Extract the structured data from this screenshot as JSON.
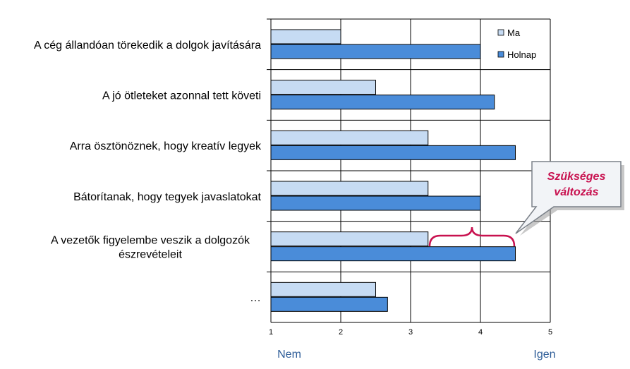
{
  "chart_data": {
    "type": "bar",
    "orientation": "horizontal",
    "categories": [
      [
        "A cég állandóan törekedik a dolgok javítására"
      ],
      [
        "A jó ötleteket azonnal tett követi"
      ],
      [
        "Arra ösztönöznek, hogy kreatív legyek"
      ],
      [
        "Bátorítanak, hogy tegyek javaslatokat"
      ],
      [
        "A vezetők figyelembe veszik a dolgozók",
        "észrevételeit"
      ],
      [
        "…"
      ]
    ],
    "series": [
      {
        "name": "Ma",
        "values": [
          2.0,
          2.5,
          3.25,
          3.25,
          3.25,
          2.5
        ],
        "color": "#c6dbf3"
      },
      {
        "name": "Holnap",
        "values": [
          4.0,
          4.2,
          4.5,
          4.0,
          4.5,
          2.67
        ],
        "color": "#4a8cd9"
      }
    ],
    "xlim": [
      1,
      5
    ],
    "xticks": [
      "1",
      "2",
      "3",
      "4",
      "5"
    ],
    "x_low_label": "Nem",
    "x_high_label": "Igen",
    "grid": true,
    "legend_position": "top-right",
    "callout": {
      "lines": [
        "Szükséges",
        "változás"
      ],
      "category_index": 4,
      "color": "#c8114f"
    }
  }
}
